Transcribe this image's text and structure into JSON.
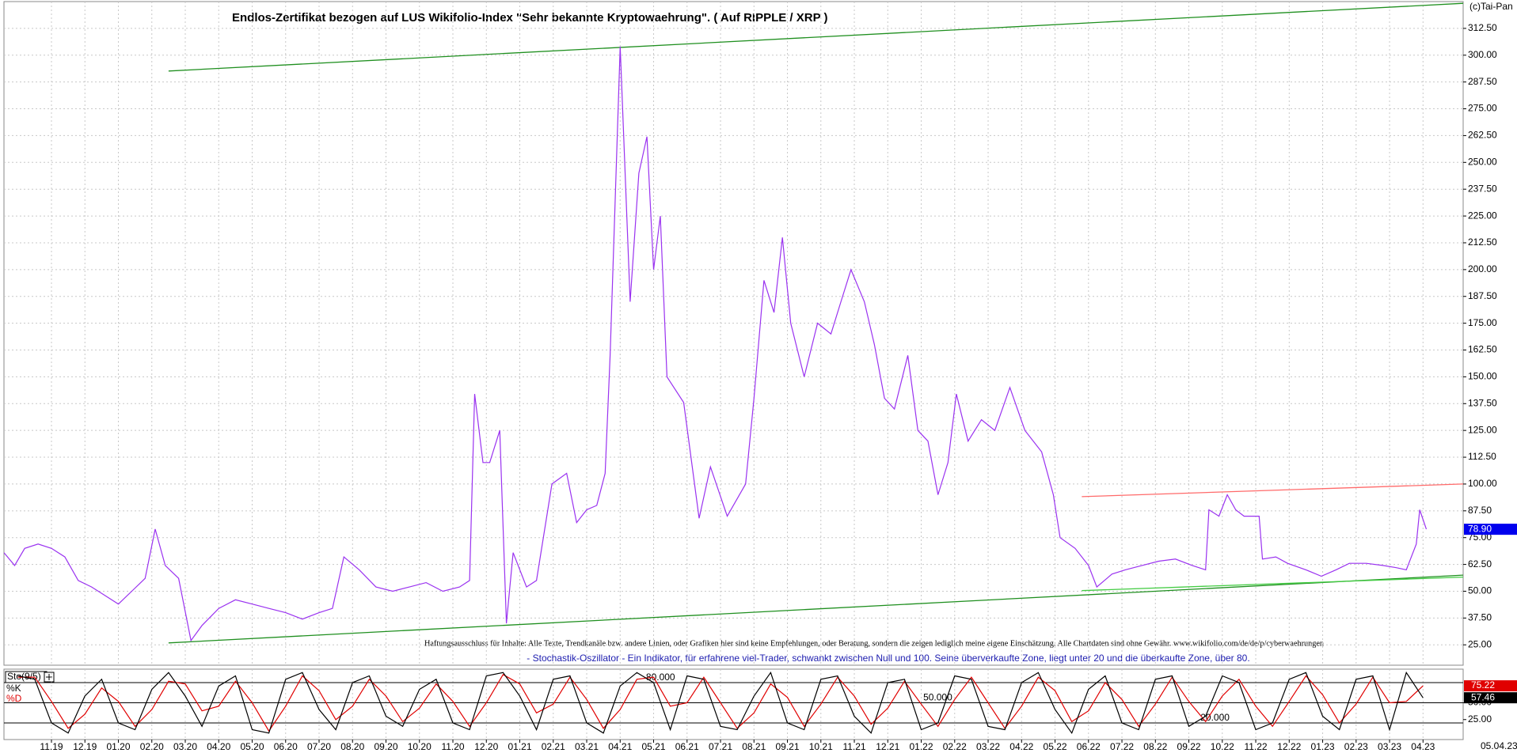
{
  "watermark": "(c)Tai-Pan",
  "last_date": "05.04.23",
  "chart_data": [
    {
      "type": "line",
      "title": "Endlos-Zertifikat bezogen auf LUS Wikifolio-Index \"Sehr bekannte Kryptowaehrung\". ( Auf RIPPLE / XRP )",
      "disclaimer": "Haftungsausschluss für Inhalte: Alle Texte, Trendkanäle bzw. andere Linien, oder Grafiken hier sind keine Empfehlungen, oder Beratung, sondern die zeigen lediglich meine eigene Einschätzung. Alle Chartdaten sind ohne Gewähr.  www.wikifolio.com/de/de/p/cyberwaehrungen",
      "description": "- Stochastik-Oszillator - Ein Indikator, für erfahrene viel-Trader, schwankt zwischen Null und 100. Seine überverkaufte Zone, liegt unter 20 und die überkaufte Zone, über 80.",
      "grid": true,
      "xlim": [
        -1.42,
        42.2
      ],
      "xticks": [
        {
          "value": 0,
          "label": "11.19"
        },
        {
          "value": 1,
          "label": "12.19"
        },
        {
          "value": 2,
          "label": "01.20"
        },
        {
          "value": 3,
          "label": "02.20"
        },
        {
          "value": 4,
          "label": "03.20"
        },
        {
          "value": 5,
          "label": "04.20"
        },
        {
          "value": 6,
          "label": "05.20"
        },
        {
          "value": 7,
          "label": "06.20"
        },
        {
          "value": 8,
          "label": "07.20"
        },
        {
          "value": 9,
          "label": "08.20"
        },
        {
          "value": 10,
          "label": "09.20"
        },
        {
          "value": 11,
          "label": "10.20"
        },
        {
          "value": 12,
          "label": "11.20"
        },
        {
          "value": 13,
          "label": "12.20"
        },
        {
          "value": 14,
          "label": "01.21"
        },
        {
          "value": 15,
          "label": "02.21"
        },
        {
          "value": 16,
          "label": "03.21"
        },
        {
          "value": 17,
          "label": "04.21"
        },
        {
          "value": 18,
          "label": "05.21"
        },
        {
          "value": 19,
          "label": "06.21"
        },
        {
          "value": 20,
          "label": "07.21"
        },
        {
          "value": 21,
          "label": "08.21"
        },
        {
          "value": 22,
          "label": "09.21"
        },
        {
          "value": 23,
          "label": "10.21"
        },
        {
          "value": 24,
          "label": "11.21"
        },
        {
          "value": 25,
          "label": "12.21"
        },
        {
          "value": 26,
          "label": "01.22"
        },
        {
          "value": 27,
          "label": "02.22"
        },
        {
          "value": 28,
          "label": "03.22"
        },
        {
          "value": 29,
          "label": "04.22"
        },
        {
          "value": 30,
          "label": "05.22"
        },
        {
          "value": 31,
          "label": "06.22"
        },
        {
          "value": 32,
          "label": "07.22"
        },
        {
          "value": 33,
          "label": "08.22"
        },
        {
          "value": 34,
          "label": "09.22"
        },
        {
          "value": 35,
          "label": "10.22"
        },
        {
          "value": 36,
          "label": "11.22"
        },
        {
          "value": 37,
          "label": "12.22"
        },
        {
          "value": 38,
          "label": "01.23"
        },
        {
          "value": 39,
          "label": "02.23"
        },
        {
          "value": 40,
          "label": "03.23"
        },
        {
          "value": 41,
          "label": "04.23"
        }
      ],
      "ylim": [
        15.5,
        325
      ],
      "yticks": [
        {
          "value": 25,
          "label": "25.00"
        },
        {
          "value": 37.5,
          "label": "37.50"
        },
        {
          "value": 50,
          "label": "50.00"
        },
        {
          "value": 62.5,
          "label": "62.50"
        },
        {
          "value": 75,
          "label": "75.00"
        },
        {
          "value": 87.5,
          "label": "87.50"
        },
        {
          "value": 100,
          "label": "100.00"
        },
        {
          "value": 112.5,
          "label": "112.50"
        },
        {
          "value": 125,
          "label": "125.00"
        },
        {
          "value": 137.5,
          "label": "137.50"
        },
        {
          "value": 150,
          "label": "150.00"
        },
        {
          "value": 162.5,
          "label": "162.50"
        },
        {
          "value": 175,
          "label": "175.00"
        },
        {
          "value": 187.5,
          "label": "187.50"
        },
        {
          "value": 200,
          "label": "200.00"
        },
        {
          "value": 212.5,
          "label": "212.50"
        },
        {
          "value": 225,
          "label": "225.00"
        },
        {
          "value": 237.5,
          "label": "237.50"
        },
        {
          "value": 250,
          "label": "250.00"
        },
        {
          "value": 262.5,
          "label": "262.50"
        },
        {
          "value": 275,
          "label": "275.00"
        },
        {
          "value": 287.5,
          "label": "287.50"
        },
        {
          "value": 300,
          "label": "300.00"
        },
        {
          "value": 312.5,
          "label": "312.50"
        }
      ],
      "series": [
        {
          "color": "#9a32f0",
          "x": [
            -1.42,
            -1.1,
            -0.8,
            -0.4,
            0,
            0.4,
            0.8,
            1.2,
            1.6,
            2.0,
            2.4,
            2.8,
            3.1,
            3.4,
            3.8,
            4.17,
            4.5,
            5.0,
            5.5,
            6.0,
            6.5,
            7.0,
            7.5,
            8.0,
            8.4,
            8.74,
            9.2,
            9.7,
            10.2,
            10.7,
            11.2,
            11.7,
            12.2,
            12.5,
            12.65,
            12.9,
            13.1,
            13.4,
            13.6,
            13.8,
            14.2,
            14.5,
            14.96,
            15.4,
            15.7,
            16.0,
            16.3,
            16.55,
            16.7,
            17.0,
            17.3,
            17.56,
            17.8,
            18.0,
            18.2,
            18.4,
            18.9,
            19.36,
            19.7,
            20.2,
            20.75,
            21.0,
            21.3,
            21.6,
            21.85,
            22.1,
            22.5,
            22.9,
            23.3,
            23.6,
            23.9,
            24.3,
            24.6,
            24.9,
            25.2,
            25.6,
            25.9,
            26.2,
            26.5,
            26.8,
            27.05,
            27.4,
            27.8,
            28.2,
            28.65,
            29.1,
            29.6,
            29.95,
            30.15,
            30.6,
            31.0,
            31.25,
            31.7,
            32.1,
            32.6,
            33.1,
            33.6,
            34.1,
            34.5,
            34.6,
            34.9,
            35.15,
            35.4,
            35.65,
            36.1,
            36.2,
            36.6,
            36.95,
            37.5,
            37.96,
            38.4,
            38.8,
            39.3,
            39.8,
            40.2,
            40.5,
            40.8,
            40.9,
            41.1
          ],
          "values": [
            68,
            62,
            70,
            72,
            70,
            66,
            55,
            52,
            48,
            44,
            50,
            56,
            79,
            62,
            56,
            27,
            34,
            42,
            46,
            44,
            42,
            40,
            37,
            40,
            42,
            66,
            60,
            52,
            50,
            52,
            54,
            50,
            52,
            55,
            142,
            110,
            110,
            125,
            35,
            68,
            52,
            55,
            100,
            105,
            82,
            88,
            90,
            105,
            160,
            304,
            185,
            245,
            262,
            200,
            225,
            150,
            138,
            84,
            108,
            85,
            100,
            140,
            195,
            180,
            215,
            175,
            150,
            175,
            170,
            185,
            200,
            185,
            165,
            140,
            135,
            160,
            125,
            120,
            95,
            110,
            142,
            120,
            130,
            125,
            145,
            125,
            115,
            95,
            75,
            70,
            62,
            52,
            58,
            60,
            62,
            64,
            65,
            62,
            60,
            88,
            85,
            95,
            88,
            85,
            85,
            65,
            66,
            63,
            60,
            57,
            60,
            63,
            63,
            62,
            61,
            60,
            72,
            88,
            78.9
          ]
        }
      ],
      "last_value": {
        "value": 78.9,
        "label": "78.90"
      },
      "trendlines": [
        {
          "color": "#1f8f1f",
          "x": [
            3.5,
            42.2
          ],
          "values": [
            292.6,
            324.2
          ]
        },
        {
          "color": "#1f8f1f",
          "x": [
            3.5,
            42.2
          ],
          "values": [
            25.9,
            57.5
          ]
        },
        {
          "color": "#44cc44",
          "x": [
            30.8,
            42.2
          ],
          "values": [
            50.3,
            56.6
          ]
        },
        {
          "color": "#ff6a6a",
          "x": [
            30.8,
            42.2
          ],
          "values": [
            94.1,
            100
          ]
        }
      ]
    },
    {
      "type": "line",
      "title": "Sto(9/5)",
      "xlim": [
        -1.42,
        42.2
      ],
      "ylim": [
        0,
        100
      ],
      "yticks": [
        {
          "value": 25,
          "label": "25.00"
        },
        {
          "value": 50,
          "label": "50.00"
        }
      ],
      "levels": [
        {
          "value": 80,
          "label": "80.000"
        },
        {
          "value": 50,
          "label": "50.000"
        },
        {
          "value": 20,
          "label": "20.000"
        }
      ],
      "x": [
        -1,
        -0.5,
        0,
        0.5,
        1,
        1.5,
        2,
        2.5,
        3,
        3.5,
        4,
        4.5,
        5,
        5.5,
        6,
        6.5,
        7,
        7.5,
        8,
        8.5,
        9,
        9.5,
        10,
        10.5,
        11,
        11.5,
        12,
        12.5,
        13,
        13.5,
        14,
        14.5,
        15,
        15.5,
        16,
        16.5,
        17,
        17.5,
        18,
        18.5,
        19,
        19.5,
        20,
        20.5,
        21,
        21.5,
        22,
        22.5,
        23,
        23.5,
        24,
        24.5,
        25,
        25.5,
        26,
        26.5,
        27,
        27.5,
        28,
        28.5,
        29,
        29.5,
        30,
        30.5,
        31,
        31.5,
        32,
        32.5,
        33,
        33.5,
        34,
        34.5,
        35,
        35.5,
        36,
        36.5,
        37,
        37.5,
        38,
        38.5,
        39,
        39.5,
        40,
        40.5,
        41
      ],
      "series": [
        {
          "name": "%K",
          "color": "#000000",
          "values": [
            90,
            85,
            20,
            5,
            60,
            85,
            20,
            10,
            70,
            95,
            60,
            15,
            75,
            90,
            10,
            5,
            85,
            95,
            40,
            10,
            80,
            90,
            30,
            15,
            70,
            85,
            20,
            10,
            90,
            95,
            60,
            10,
            85,
            90,
            20,
            5,
            75,
            95,
            80,
            10,
            90,
            85,
            15,
            10,
            60,
            95,
            20,
            10,
            85,
            90,
            30,
            5,
            80,
            85,
            10,
            20,
            90,
            85,
            15,
            10,
            80,
            95,
            40,
            5,
            70,
            90,
            20,
            10,
            85,
            90,
            15,
            30,
            90,
            80,
            10,
            20,
            85,
            95,
            30,
            10,
            85,
            90,
            10,
            95,
            57.46
          ]
        },
        {
          "name": "%D",
          "color": "#e00000",
          "values": [
            88,
            88,
            52,
            12,
            33,
            72,
            52,
            15,
            40,
            82,
            78,
            38,
            45,
            82,
            50,
            8,
            45,
            90,
            68,
            25,
            45,
            85,
            60,
            22,
            42,
            78,
            52,
            15,
            50,
            92,
            78,
            35,
            48,
            88,
            55,
            12,
            40,
            85,
            88,
            45,
            50,
            88,
            50,
            12,
            35,
            78,
            58,
            15,
            48,
            88,
            60,
            18,
            42,
            82,
            48,
            15,
            55,
            88,
            50,
            12,
            45,
            88,
            68,
            22,
            38,
            80,
            55,
            15,
            48,
            88,
            52,
            22,
            60,
            85,
            45,
            15,
            52,
            90,
            62,
            20,
            48,
            88,
            50,
            52,
            75.22
          ]
        }
      ]
    }
  ]
}
